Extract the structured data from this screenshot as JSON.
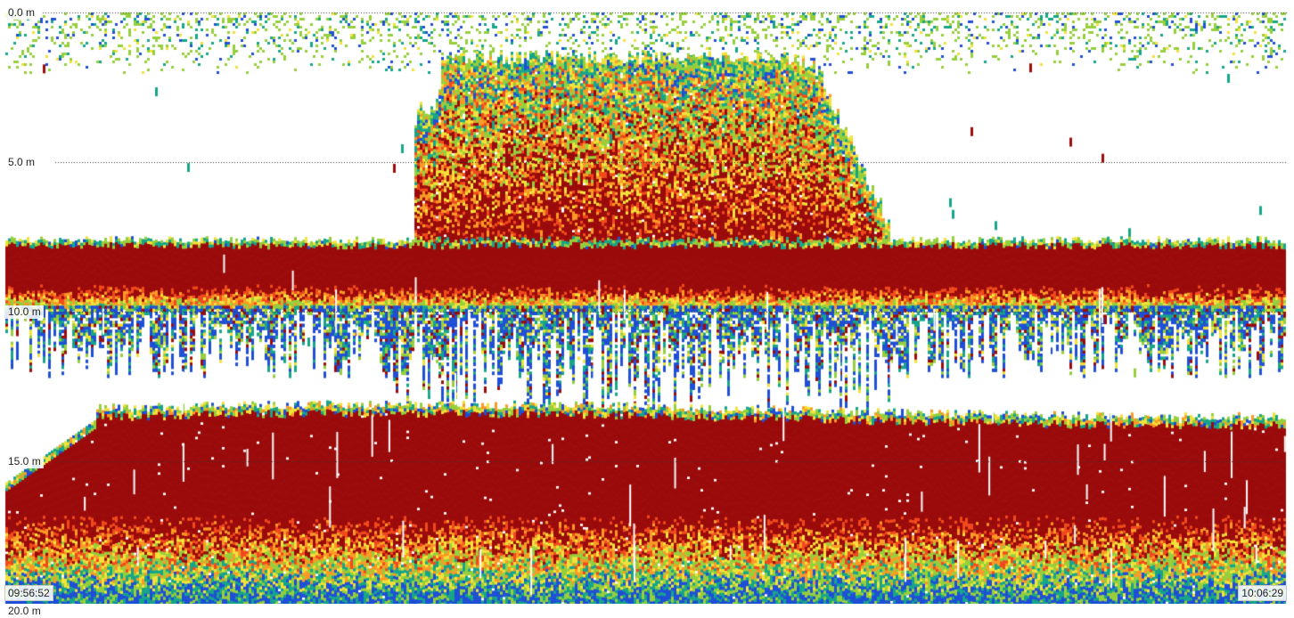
{
  "chart_data": {
    "type": "heatmap",
    "title": "",
    "x_axis": {
      "start_time": "09:56:52",
      "end_time": "10:06:29"
    },
    "y_axis": {
      "unit": "m",
      "range_m": [
        0.0,
        20.0
      ],
      "reversed": true,
      "ticks": [
        {
          "value": 0.0,
          "label": "0.0 m"
        },
        {
          "value": 5.0,
          "label": "5.0 m"
        },
        {
          "value": 10.0,
          "label": "10.0 m"
        },
        {
          "value": 15.0,
          "label": "15.0 m"
        },
        {
          "value": 20.0,
          "label": "20.0 m"
        }
      ]
    },
    "grid": "dotted horizontal lines at labeled depths",
    "color_scale": [
      "#ffffff",
      "#1f4fd6",
      "#17a589",
      "#96cf3c",
      "#f2e23a",
      "#fb9a26",
      "#f04a1c",
      "#9b0b0b"
    ],
    "echo_features": [
      {
        "name": "surface",
        "depth_m": [
          0.0,
          2.0
        ],
        "intensity": "low"
      },
      {
        "name": "upper_layer",
        "depth_m": [
          7.6,
          9.9
        ],
        "intensity": "strong"
      },
      {
        "name": "school",
        "time_fraction": [
          0.32,
          0.69
        ],
        "depth_m": [
          1.2,
          9.5
        ],
        "intensity": "strong"
      },
      {
        "name": "lower_layer",
        "depth_m": [
          13.2,
          20.0
        ],
        "intensity": "strong"
      }
    ]
  }
}
